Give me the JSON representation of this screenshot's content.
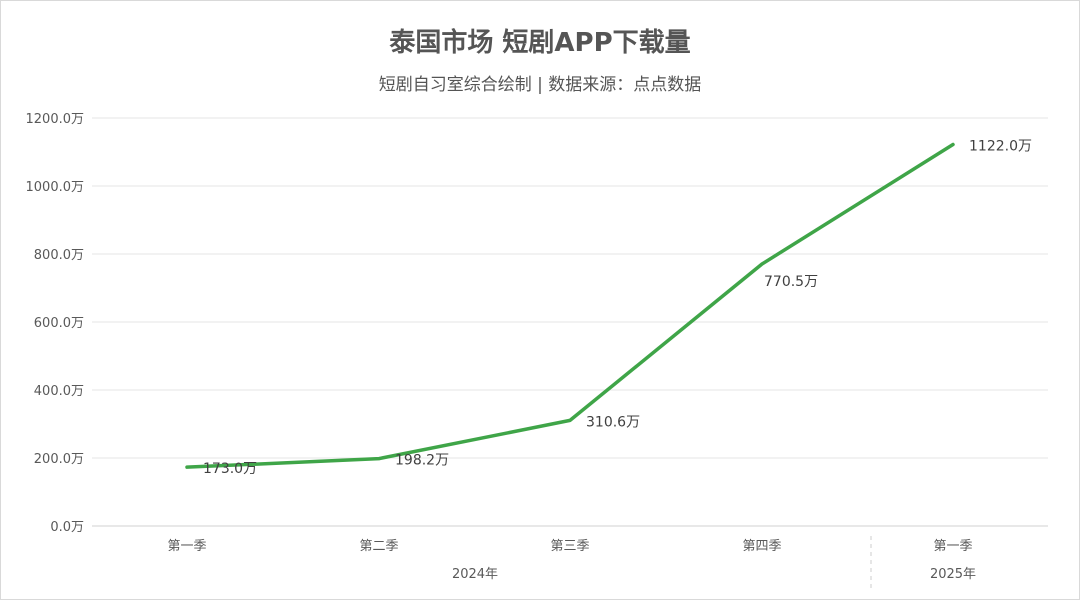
{
  "title": "泰国市场 短剧APP下载量",
  "subtitle": "短剧自习室综合绘制 | 数据来源：点点数据",
  "chart_data": {
    "type": "line",
    "title": "泰国市场 短剧APP下载量",
    "subtitle": "短剧自习室综合绘制 | 数据来源：点点数据",
    "categories": [
      "第一季",
      "第二季",
      "第三季",
      "第四季",
      "第一季"
    ],
    "groups": [
      {
        "label": "2024年",
        "start": 0,
        "end": 3
      },
      {
        "label": "2025年",
        "start": 4,
        "end": 4
      }
    ],
    "values": [
      173.0,
      198.2,
      310.6,
      770.5,
      1122.0
    ],
    "value_labels": [
      "173.0万",
      "198.2万",
      "310.6万",
      "770.5万",
      "1122.0万"
    ],
    "y_ticks": [
      "0.0万",
      "200.0万",
      "400.0万",
      "600.0万",
      "800.0万",
      "1000.0万",
      "1200.0万"
    ],
    "ylim": [
      0,
      1200
    ],
    "grid": true,
    "line_color": "#3fa548"
  }
}
